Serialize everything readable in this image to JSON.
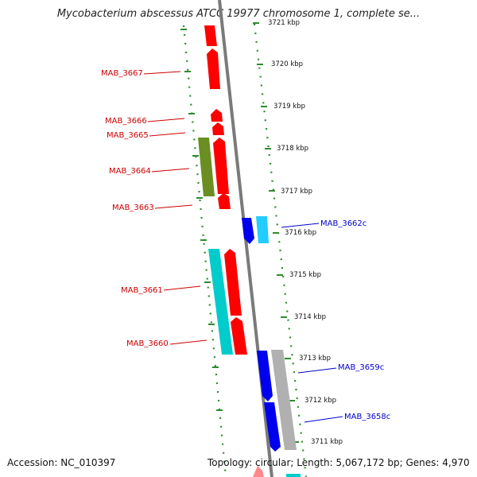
{
  "title": "Mycobacterium abscessus ATCC 19977 chromosome 1, complete se...",
  "accession_text": "Accession: NC_010397",
  "summary_text": "Topology: circular; Length: 5,067,172 bp; Genes: 4,970",
  "colors": {
    "forward_gene": "#ff0000",
    "reverse_gene": "#0000ff",
    "cyan_gene": "#00cccc",
    "light_cyan_gene": "#22ccff",
    "olive_gene": "#6b8e23",
    "gray_gene": "#b0b0b0",
    "backbone": "#888888",
    "dotted_ticks": "#2e8b2e",
    "forward_label": "#cc0000",
    "reverse_label": "#0000cc"
  },
  "kbp_labels": [
    "3721 kbp",
    "3720 kbp",
    "3719 kbp",
    "3718 kbp",
    "3717 kbp",
    "3716 kbp",
    "3715 kbp",
    "3714 kbp",
    "3713 kbp",
    "3712 kbp",
    "3711 kbp"
  ],
  "gene_labels": {
    "MAB_3667": "MAB_3667",
    "MAB_3666": "MAB_3666",
    "MAB_3665": "MAB_3665",
    "MAB_3664": "MAB_3664",
    "MAB_3663": "MAB_3663",
    "MAB_3662c": "MAB_3662c",
    "MAB_3661": "MAB_3661",
    "MAB_3660": "MAB_3660",
    "MAB_3659c": "MAB_3659c",
    "MAB_3658c": "MAB_3658c"
  }
}
